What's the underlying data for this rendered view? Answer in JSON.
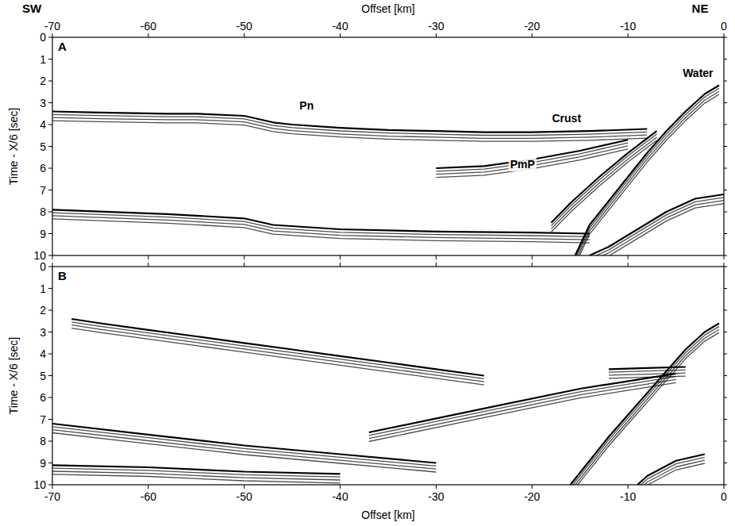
{
  "header": {
    "left": "SW",
    "right": "NE"
  },
  "chart_data": [
    {
      "type": "line",
      "title": "A",
      "xlabel": "Offset [km]",
      "ylabel": "Time - X/6 [sec]",
      "xlim": [
        -70,
        0
      ],
      "xticks": [
        -70,
        -60,
        -50,
        -40,
        -30,
        -20,
        -10,
        0
      ],
      "ylim": [
        10,
        0
      ],
      "yticks": [
        0,
        1,
        2,
        3,
        4,
        5,
        6,
        7,
        8,
        9,
        10
      ],
      "annotations": [
        {
          "text": "Water",
          "x": -2.7,
          "y": 1.8
        },
        {
          "text": "Crust",
          "x": -16.4,
          "y": 3.9
        },
        {
          "text": "Pn",
          "x": -43.5,
          "y": 3.3
        },
        {
          "text": "PmP",
          "x": -21,
          "y": 6.0
        }
      ],
      "series": [
        {
          "color": "#000000",
          "x": [
            -0.5,
            -2,
            -4,
            -6,
            -8,
            -10,
            -12,
            -14,
            -15.5
          ],
          "values": [
            2.2,
            2.6,
            3.4,
            4.3,
            5.3,
            6.4,
            7.5,
            8.6,
            10
          ]
        },
        {
          "color": "#000000",
          "x": [
            -8,
            -14,
            -20,
            -25,
            -30,
            -35,
            -40,
            -45,
            -47,
            -50,
            -55,
            -58,
            -65,
            -70
          ],
          "values": [
            4.2,
            4.3,
            4.35,
            4.35,
            4.3,
            4.25,
            4.15,
            4.0,
            3.9,
            3.6,
            3.5,
            3.5,
            3.45,
            3.4
          ]
        },
        {
          "color": "#000000",
          "x": [
            -10,
            -15,
            -20,
            -25,
            -30
          ],
          "values": [
            4.7,
            5.2,
            5.6,
            5.9,
            6.0
          ]
        },
        {
          "color": "#000000",
          "x": [
            -14,
            -20,
            -30,
            -40,
            -47,
            -50,
            -58,
            -70
          ],
          "values": [
            9.0,
            8.95,
            8.9,
            8.8,
            8.6,
            8.3,
            8.1,
            7.9
          ]
        },
        {
          "color": "#000000",
          "x": [
            -7,
            -10,
            -13,
            -16,
            -18
          ],
          "values": [
            4.3,
            5.3,
            6.4,
            7.6,
            8.5
          ]
        },
        {
          "color": "#000000",
          "x": [
            0,
            -3,
            -6,
            -9,
            -12,
            -14
          ],
          "values": [
            7.2,
            7.4,
            8.0,
            8.8,
            9.6,
            10
          ]
        }
      ]
    },
    {
      "type": "line",
      "title": "B",
      "xlabel": "Offset [km]",
      "ylabel": "Time - X/6 [sec]",
      "xlim": [
        -70,
        0
      ],
      "xticks": [
        -70,
        -60,
        -50,
        -40,
        -30,
        -20,
        -10,
        0
      ],
      "ylim": [
        10,
        0
      ],
      "yticks": [
        0,
        1,
        2,
        3,
        4,
        5,
        6,
        7,
        8,
        9,
        10
      ],
      "series": [
        {
          "color": "#000000",
          "x": [
            -0.5,
            -2,
            -4,
            -6,
            -8,
            -10,
            -12,
            -14,
            -16
          ],
          "values": [
            2.6,
            3.0,
            3.8,
            4.8,
            5.8,
            6.8,
            7.8,
            8.9,
            10
          ]
        },
        {
          "color": "#000000",
          "x": [
            -25,
            -30,
            -35,
            -40,
            -45,
            -50,
            -55,
            -60,
            -65,
            -68
          ],
          "values": [
            5.0,
            4.7,
            4.4,
            4.1,
            3.8,
            3.5,
            3.2,
            2.9,
            2.6,
            2.4
          ]
        },
        {
          "color": "#000000",
          "x": [
            -4,
            -8,
            -12
          ],
          "values": [
            4.6,
            4.65,
            4.7
          ]
        },
        {
          "color": "#000000",
          "x": [
            -5,
            -15,
            -25,
            -37
          ],
          "values": [
            4.9,
            5.6,
            6.5,
            7.6
          ]
        },
        {
          "color": "#000000",
          "x": [
            -30,
            -40,
            -50,
            -60,
            -70
          ],
          "values": [
            9.0,
            8.6,
            8.2,
            7.7,
            7.2
          ]
        },
        {
          "color": "#000000",
          "x": [
            -40,
            -50,
            -60,
            -70
          ],
          "values": [
            9.5,
            9.4,
            9.2,
            9.1
          ]
        },
        {
          "color": "#000000",
          "x": [
            -2,
            -5,
            -8,
            -9
          ],
          "values": [
            8.6,
            8.9,
            9.6,
            10
          ]
        }
      ]
    }
  ]
}
